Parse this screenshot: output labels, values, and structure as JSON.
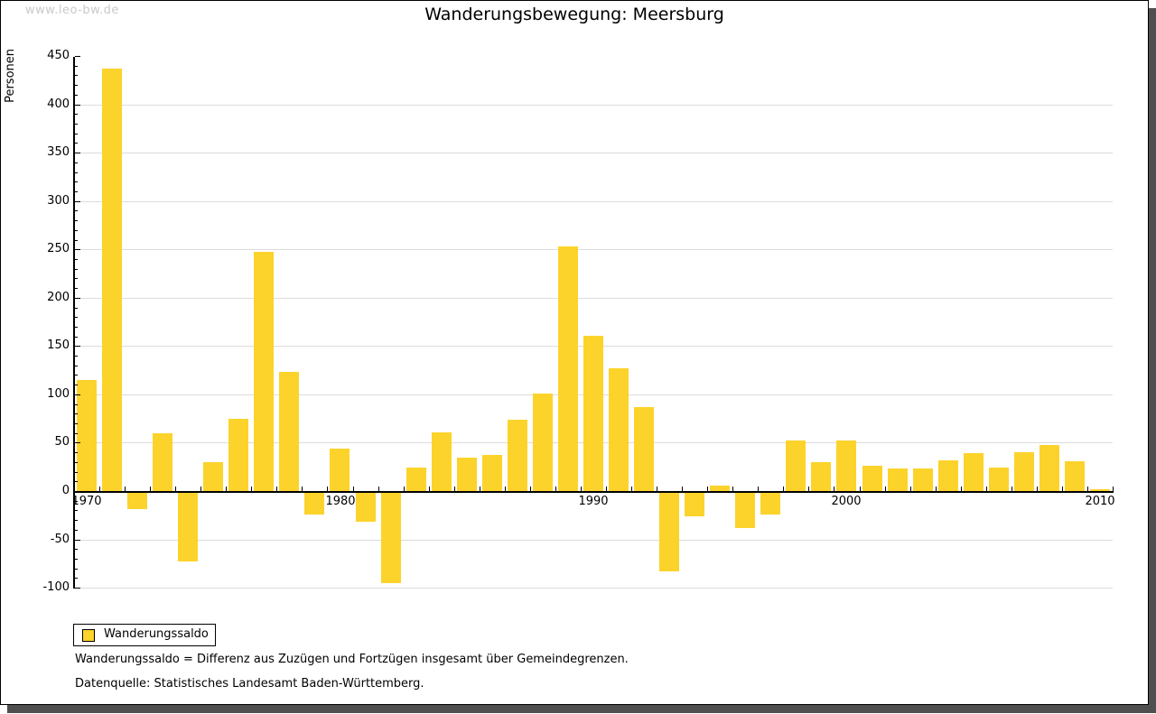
{
  "watermark": "www.leo-bw.de",
  "title": "Wanderungsbewegung: Meersburg",
  "chart_data": {
    "type": "bar",
    "title": "Wanderungsbewegung: Meersburg",
    "xlabel": "",
    "ylabel": "Personen",
    "ylim": [
      -100,
      450
    ],
    "ytick_step": 50,
    "yminor_step": 10,
    "grid": "horizontal",
    "legend_position": "bottom-left",
    "legend_label": "Wanderungssaldo",
    "bar_color": "#FCD32B",
    "categories": [
      1970,
      1971,
      1972,
      1973,
      1974,
      1975,
      1976,
      1977,
      1978,
      1979,
      1980,
      1981,
      1982,
      1983,
      1984,
      1985,
      1986,
      1987,
      1988,
      1989,
      1990,
      1991,
      1992,
      1993,
      1994,
      1995,
      1996,
      1997,
      1998,
      1999,
      2000,
      2001,
      2002,
      2003,
      2004,
      2005,
      2006,
      2007,
      2008,
      2009,
      2010
    ],
    "values": [
      115,
      437,
      -19,
      60,
      -73,
      30,
      75,
      247,
      123,
      -24,
      44,
      -32,
      -95,
      24,
      61,
      35,
      37,
      74,
      101,
      253,
      161,
      127,
      87,
      -83,
      -26,
      6,
      -38,
      -24,
      52,
      30,
      52,
      26,
      23,
      23,
      32,
      39,
      24,
      40,
      48,
      31,
      2
    ],
    "xtick_labels": [
      "1970",
      "1980",
      "1990",
      "2000",
      "2010"
    ]
  },
  "footnotes": {
    "definition": "Wanderungssaldo = Differenz aus Zuzügen und Fortzügen insgesamt über Gemeindegrenzen.",
    "source": "Datenquelle: Statistisches Landesamt Baden-Württemberg."
  }
}
